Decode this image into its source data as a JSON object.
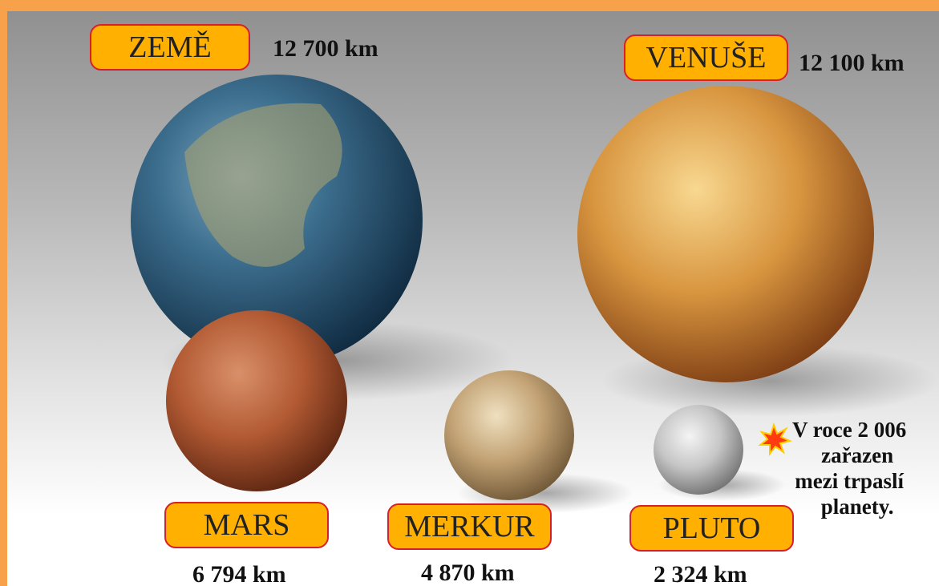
{
  "planets": [
    {
      "name": "ZEMĚ",
      "diameter": "12 700 km"
    },
    {
      "name": "VENUŠE",
      "diameter": "12 100 km"
    },
    {
      "name": "MARS",
      "diameter": "6 794 km"
    },
    {
      "name": "MERKUR",
      "diameter": "4 870 km"
    },
    {
      "name": "PLUTO",
      "diameter": "2 324 km"
    }
  ],
  "note": {
    "lines": [
      "V roce 2 006",
      "zařazen",
      "mezi trpaslí",
      "planety."
    ]
  }
}
